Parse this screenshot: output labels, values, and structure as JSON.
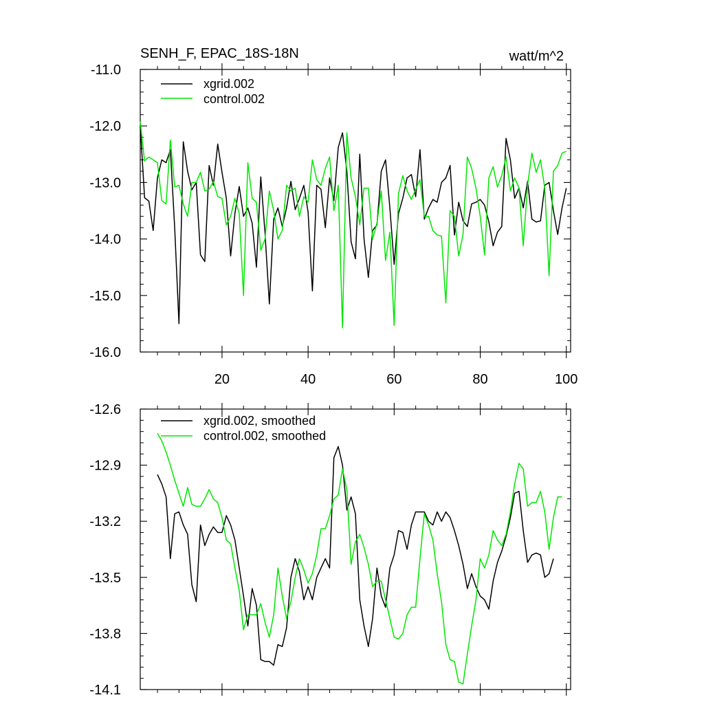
{
  "header": {
    "title": "SENH_F, EPAC_18S-18N",
    "units": "watt/m^2"
  },
  "colors": {
    "xgrid": "#000000",
    "control": "#00e600"
  },
  "chart_data": [
    {
      "type": "line",
      "title": "SENH_F, EPAC_18S-18N",
      "units": "watt/m^2",
      "xlabel": "",
      "ylabel": "",
      "xlim": [
        1,
        101
      ],
      "ylim": [
        -16.0,
        -11.0
      ],
      "xticks": [
        20,
        40,
        60,
        80,
        100
      ],
      "xtick_labels": [
        "20",
        "40",
        "60",
        "80",
        "100"
      ],
      "yticks": [
        -11.0,
        -12.0,
        -13.0,
        -14.0,
        -15.0,
        -16.0
      ],
      "ytick_labels": [
        "-11.0",
        "-12.0",
        "-13.0",
        "-14.0",
        "-15.0",
        "-16.0"
      ],
      "legend_position": "top-left",
      "grid": false,
      "x_start": 1,
      "series": [
        {
          "name": "xgrid.002",
          "color": "#000000",
          "values": [
            -12.0,
            -13.27,
            -13.33,
            -13.85,
            -12.92,
            -12.6,
            -12.65,
            -12.42,
            -13.8,
            -15.5,
            -12.28,
            -12.8,
            -13.13,
            -13.0,
            -14.28,
            -14.4,
            -12.7,
            -13.05,
            -12.32,
            -12.82,
            -13.28,
            -14.3,
            -13.55,
            -13.07,
            -13.6,
            -13.45,
            -13.72,
            -14.5,
            -12.9,
            -13.9,
            -15.15,
            -13.65,
            -13.45,
            -13.78,
            -13.45,
            -12.98,
            -13.48,
            -13.28,
            -13.05,
            -13.52,
            -14.92,
            -13.05,
            -13.12,
            -13.8,
            -12.92,
            -13.32,
            -12.38,
            -12.12,
            -12.8,
            -14.05,
            -14.35,
            -12.5,
            -14.0,
            -14.68,
            -13.85,
            -13.75,
            -12.8,
            -12.6,
            -13.45,
            -14.45,
            -13.55,
            -13.28,
            -12.92,
            -12.86,
            -13.25,
            -12.42,
            -13.65,
            -13.45,
            -13.3,
            -13.35,
            -13.0,
            -12.92,
            -12.7,
            -13.93,
            -13.35,
            -13.68,
            -13.78,
            -13.38,
            -13.35,
            -13.3,
            -13.4,
            -13.7,
            -14.12,
            -13.88,
            -13.78,
            -12.22,
            -12.6,
            -13.28,
            -13.1,
            -13.45,
            -12.98,
            -13.65,
            -13.7,
            -13.68,
            -13.05,
            -13.0,
            -13.5,
            -13.92,
            -13.45,
            -13.1
          ]
        },
        {
          "name": "control.002",
          "color": "#00e600",
          "values": [
            -11.92,
            -12.62,
            -12.55,
            -12.6,
            -12.65,
            -13.32,
            -13.38,
            -12.25,
            -13.08,
            -13.05,
            -13.38,
            -13.6,
            -13.0,
            -13.0,
            -12.82,
            -13.15,
            -13.12,
            -12.98,
            -13.25,
            -13.28,
            -13.75,
            -13.6,
            -13.28,
            -13.55,
            -15.0,
            -12.65,
            -13.28,
            -13.35,
            -14.2,
            -14.0,
            -13.15,
            -13.5,
            -14.0,
            -13.85,
            -13.05,
            -13.15,
            -13.1,
            -13.6,
            -13.25,
            -13.35,
            -12.6,
            -12.95,
            -13.05,
            -12.75,
            -12.55,
            -13.5,
            -13.05,
            -15.57,
            -12.12,
            -12.92,
            -13.25,
            -13.75,
            -13.1,
            -13.1,
            -14.0,
            -13.72,
            -13.15,
            -14.38,
            -13.88,
            -15.53,
            -13.2,
            -12.88,
            -13.15,
            -13.3,
            -13.12,
            -12.95,
            -13.6,
            -13.6,
            -13.85,
            -13.93,
            -13.95,
            -15.13,
            -13.5,
            -13.6,
            -14.3,
            -13.92,
            -12.55,
            -12.75,
            -13.1,
            -13.6,
            -14.28,
            -12.92,
            -12.72,
            -13.08,
            -12.88,
            -12.55,
            -13.15,
            -12.92,
            -13.1,
            -14.12,
            -13.05,
            -12.48,
            -12.82,
            -12.6,
            -13.1,
            -14.65,
            -12.8,
            -12.7,
            -12.48,
            -12.45
          ]
        }
      ]
    },
    {
      "type": "line",
      "title": "",
      "xlabel": "",
      "ylabel": "",
      "xlim": [
        1,
        101
      ],
      "ylim": [
        -14.1,
        -12.6
      ],
      "xticks": [
        20,
        40,
        60,
        80,
        100
      ],
      "xtick_labels": [],
      "yticks": [
        -12.6,
        -12.9,
        -13.2,
        -13.5,
        -13.8,
        -14.1
      ],
      "ytick_labels": [
        "-12.6",
        "-12.9",
        "-13.2",
        "-13.5",
        "-13.8",
        "-14.1"
      ],
      "legend_position": "top-left",
      "grid": false,
      "x_start": 5,
      "series": [
        {
          "name": "xgrid.002, smoothed",
          "color": "#000000",
          "values": [
            -12.95,
            -13.0,
            -13.07,
            -13.4,
            -13.16,
            -13.15,
            -13.22,
            -13.27,
            -13.54,
            -13.63,
            -13.22,
            -13.33,
            -13.27,
            -13.23,
            -13.26,
            -13.26,
            -13.17,
            -13.22,
            -13.3,
            -13.45,
            -13.6,
            -13.76,
            -13.56,
            -13.65,
            -13.94,
            -13.95,
            -13.95,
            -13.97,
            -13.86,
            -13.87,
            -13.77,
            -13.5,
            -13.4,
            -13.47,
            -13.62,
            -13.55,
            -13.62,
            -13.5,
            -13.45,
            -13.4,
            -13.45,
            -12.86,
            -12.8,
            -12.9,
            -13.14,
            -13.07,
            -13.16,
            -13.62,
            -13.76,
            -13.87,
            -13.72,
            -13.45,
            -13.6,
            -13.66,
            -13.45,
            -13.38,
            -13.25,
            -13.26,
            -13.35,
            -13.22,
            -13.15,
            -13.15,
            -13.15,
            -13.2,
            -13.22,
            -13.15,
            -13.2,
            -13.15,
            -13.18,
            -13.25,
            -13.33,
            -13.43,
            -13.56,
            -13.48,
            -13.55,
            -13.6,
            -13.62,
            -13.67,
            -13.52,
            -13.42,
            -13.36,
            -13.28,
            -13.18,
            -13.05,
            -13.04,
            -13.25,
            -13.42,
            -13.38,
            -13.37,
            -13.38,
            -13.5,
            -13.48,
            -13.4
          ]
        },
        {
          "name": "control.002, smoothed",
          "color": "#00e600",
          "values": [
            -12.73,
            -12.77,
            -12.83,
            -12.9,
            -12.98,
            -13.05,
            -13.12,
            -13.02,
            -13.11,
            -13.12,
            -13.12,
            -13.08,
            -13.03,
            -13.08,
            -13.1,
            -13.18,
            -13.3,
            -13.32,
            -13.45,
            -13.57,
            -13.78,
            -13.7,
            -13.7,
            -13.7,
            -13.64,
            -13.74,
            -13.82,
            -13.7,
            -13.45,
            -13.6,
            -13.72,
            -13.63,
            -13.5,
            -13.4,
            -13.46,
            -13.53,
            -13.48,
            -13.38,
            -13.24,
            -13.24,
            -13.17,
            -13.08,
            -13.06,
            -12.92,
            -13.03,
            -13.43,
            -13.31,
            -13.27,
            -13.34,
            -13.43,
            -13.55,
            -13.52,
            -13.52,
            -13.62,
            -13.72,
            -13.82,
            -13.83,
            -13.8,
            -13.7,
            -13.66,
            -13.66,
            -13.4,
            -13.16,
            -13.22,
            -13.3,
            -13.48,
            -13.63,
            -13.86,
            -13.94,
            -13.95,
            -14.06,
            -14.07,
            -13.91,
            -13.76,
            -13.62,
            -13.4,
            -13.45,
            -13.38,
            -13.25,
            -13.3,
            -13.33,
            -13.27,
            -13.15,
            -13.0,
            -12.89,
            -12.92,
            -13.12,
            -13.1,
            -13.1,
            -13.04,
            -13.15,
            -13.35,
            -13.18,
            -13.07,
            -13.07
          ]
        }
      ]
    }
  ],
  "panels": {
    "top": {
      "legend": [
        {
          "label": "xgrid.002"
        },
        {
          "label": "control.002"
        }
      ]
    },
    "bottom": {
      "legend": [
        {
          "label": "xgrid.002, smoothed"
        },
        {
          "label": "control.002, smoothed"
        }
      ]
    }
  }
}
